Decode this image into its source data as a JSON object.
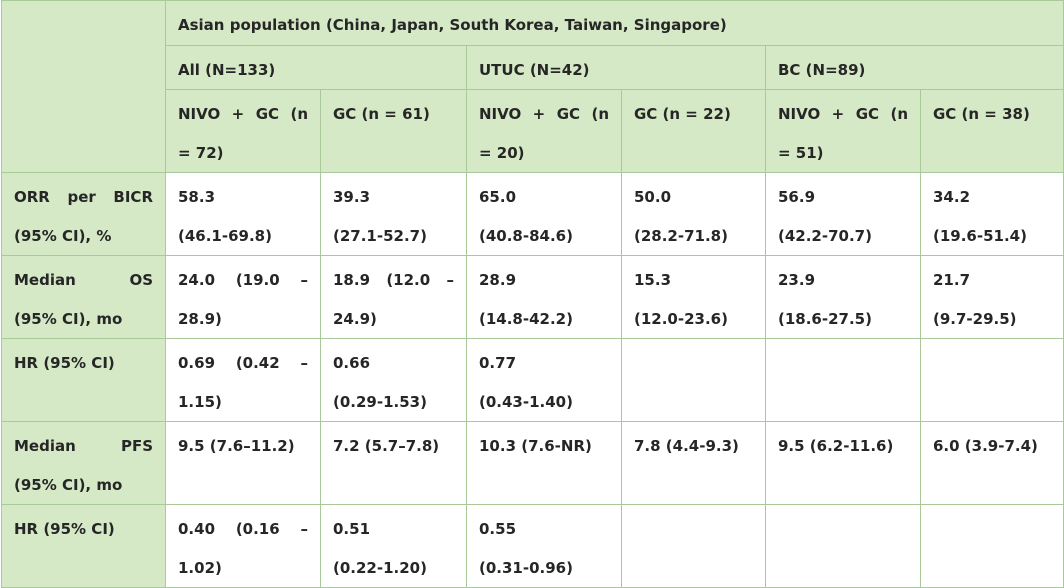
{
  "header": {
    "population": "Asian population (China, Japan, South Korea, Taiwan, Singapore)",
    "groups": [
      {
        "label": "All (N=133)"
      },
      {
        "label": "UTUC (N=42)"
      },
      {
        "label": "BC (N=89)"
      }
    ],
    "arms": [
      {
        "line1": "NIVO + GC (n",
        "line2": "= 72)"
      },
      {
        "line1": "GC (n = 61)",
        "line2": ""
      },
      {
        "line1": "NIVO + GC (n",
        "line2": "= 20)"
      },
      {
        "line1": "GC (n = 22)",
        "line2": ""
      },
      {
        "line1": "NIVO + GC (n",
        "line2": "= 51)"
      },
      {
        "line1": "GC (n = 38)",
        "line2": ""
      }
    ]
  },
  "rows": [
    {
      "label1": "ORR per BICR",
      "label2": "(95% CI), %",
      "cells": [
        {
          "l1": "58.3",
          "l2": "(46.1-69.8)"
        },
        {
          "l1": "39.3",
          "l2": "(27.1-52.7)"
        },
        {
          "l1": "65.0",
          "l2": "(40.8-84.6)"
        },
        {
          "l1": "50.0",
          "l2": "(28.2-71.8)"
        },
        {
          "l1": "56.9",
          "l2": "(42.2-70.7)"
        },
        {
          "l1": "34.2",
          "l2": "(19.6-51.4)"
        }
      ]
    },
    {
      "label1": "Median OS",
      "label2": "(95% CI), mo",
      "cells": [
        {
          "l1": "24.0 (19.0 –",
          "l2": "28.9)"
        },
        {
          "l1": "18.9 (12.0 –",
          "l2": "24.9)"
        },
        {
          "l1": "28.9",
          "l2": "(14.8-42.2)"
        },
        {
          "l1": "15.3",
          "l2": "(12.0-23.6)"
        },
        {
          "l1": "23.9",
          "l2": "(18.6-27.5)"
        },
        {
          "l1": "21.7",
          "l2": "(9.7-29.5)"
        }
      ]
    },
    {
      "label1": "HR (95% CI)",
      "label2": "",
      "cells": [
        {
          "l1": "0.69 (0.42 –",
          "l2": "1.15)"
        },
        {
          "l1": "0.66",
          "l2": "(0.29-1.53)"
        },
        {
          "l1": "0.77",
          "l2": "(0.43-1.40)"
        }
      ]
    },
    {
      "label1": "Median PFS",
      "label2": "(95% CI), mo",
      "cells": [
        {
          "l1": "9.5 (7.6–11.2)",
          "l2": ""
        },
        {
          "l1": "7.2 (5.7–7.8)",
          "l2": ""
        },
        {
          "l1": "10.3 (7.6-NR)",
          "l2": ""
        },
        {
          "l1": "7.8 (4.4-9.3)",
          "l2": ""
        },
        {
          "l1": "9.5 (6.2-11.6)",
          "l2": ""
        },
        {
          "l1": "6.0 (3.9-7.4)",
          "l2": ""
        }
      ]
    },
    {
      "label1": "HR (95% CI)",
      "label2": "",
      "cells": [
        {
          "l1": "0.40 (0.16 –",
          "l2": "1.02)"
        },
        {
          "l1": "0.51",
          "l2": "(0.22-1.20)"
        },
        {
          "l1": "0.55",
          "l2": "(0.31-0.96)"
        }
      ]
    }
  ],
  "colors": {
    "header_fill": "#d6e9c6",
    "border": "#a9c99a",
    "text": "#262626"
  }
}
